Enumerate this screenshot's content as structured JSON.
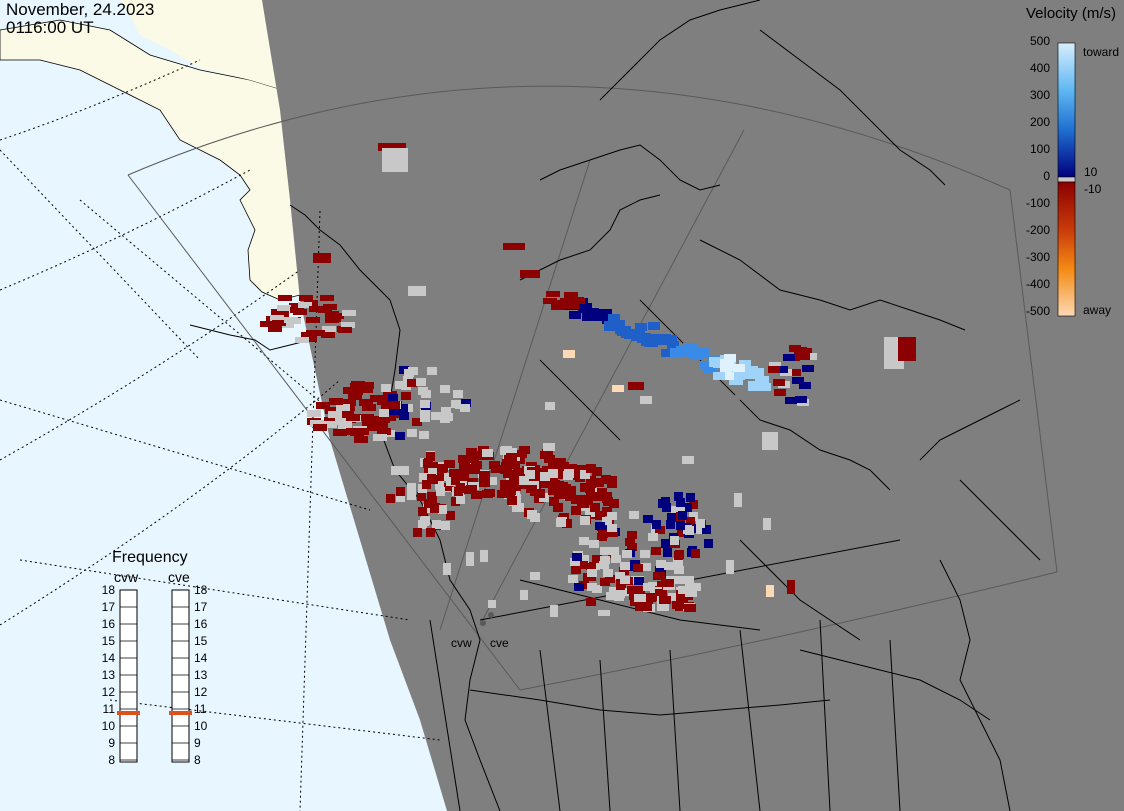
{
  "header": {
    "date": "November, 24.2023",
    "time": "0116:00 UT"
  },
  "velocity_scale": {
    "title": "Velocity (m/s)",
    "ticks": [
      "500",
      "400",
      "300",
      "200",
      "100",
      "10",
      "0",
      "-10",
      "-100",
      "-200",
      "-300",
      "-400",
      "-500"
    ],
    "toward_label": "toward",
    "away_label": "away",
    "colors": {
      "toward_max": "#d7eefc",
      "toward_mid": "#1f8be0",
      "toward_low": "#00007f",
      "zero": "#c8c8c8",
      "away_low": "#8b0000",
      "away_mid": "#e8650c",
      "away_max": "#fdd9b5"
    }
  },
  "frequency": {
    "title": "Frequency",
    "radars": [
      {
        "name": "cvw",
        "value": 11
      },
      {
        "name": "cve",
        "value": 11
      }
    ],
    "ticks": [
      "18",
      "17",
      "16",
      "15",
      "14",
      "13",
      "12",
      "11",
      "10",
      "9",
      "8"
    ],
    "marker_color": "#e0501a"
  },
  "map": {
    "ocean_color": "#e8f6ff",
    "daylight_land_color": "#fafae6",
    "night_shade_color": "#7f7f7f",
    "coast_color": "#000000",
    "radar_site_labels": [
      "cvw",
      "cve"
    ]
  }
}
